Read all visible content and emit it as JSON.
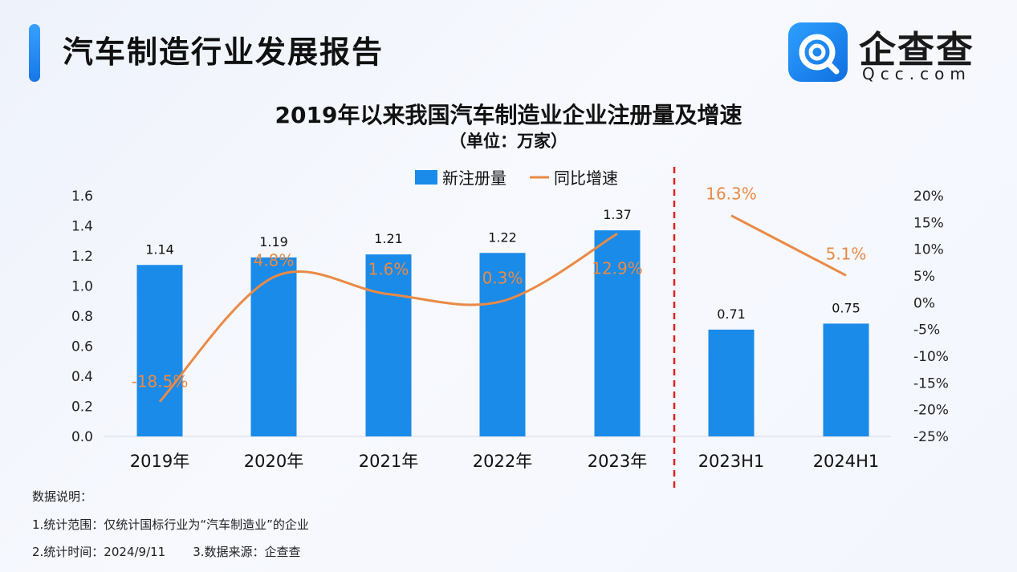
{
  "header": {
    "title": "汽车制造行业发展报告",
    "logo_name": "企查查",
    "logo_domain": "Qcc.com"
  },
  "chart_data": {
    "type": "bar",
    "title": "2019年以来我国汽车制造业企业注册量及增速",
    "subtitle": "（单位：万家）",
    "categories": [
      "2019年",
      "2020年",
      "2021年",
      "2022年",
      "2023年",
      "2023H1",
      "2024H1"
    ],
    "series": [
      {
        "name": "新注册量",
        "type": "bar",
        "axis": "left",
        "color": "#1a8be8",
        "values": [
          1.14,
          1.19,
          1.21,
          1.22,
          1.37,
          0.71,
          0.75
        ],
        "labels": [
          "1.14",
          "1.19",
          "1.21",
          "1.22",
          "1.37",
          "0.71",
          "0.75"
        ]
      },
      {
        "name": "同比增速",
        "type": "line",
        "axis": "right",
        "color": "#ea8a45",
        "values": [
          -18.5,
          4.8,
          1.6,
          0.3,
          12.9,
          16.3,
          5.1
        ],
        "labels": [
          "-18.5%",
          "4.8%",
          "1.6%",
          "0.3%",
          "12.9%",
          "16.3%",
          "5.1%"
        ]
      }
    ],
    "y_left": {
      "min": 0,
      "max": 1.6,
      "ticks": [
        "0.0",
        "0.2",
        "0.4",
        "0.6",
        "0.8",
        "1.0",
        "1.2",
        "1.4",
        "1.6"
      ]
    },
    "y_right": {
      "min": -25,
      "max": 20,
      "ticks": [
        "-25%",
        "-20%",
        "-15%",
        "-10%",
        "-5%",
        "0%",
        "5%",
        "10%",
        "15%",
        "20%"
      ]
    },
    "legend_position": "top-center",
    "grid": false,
    "divider": {
      "after_index": 4,
      "style": "dashed",
      "color": "#e02020"
    }
  },
  "notes": {
    "heading": "数据说明：",
    "scope": "1.统计范围：仅统计国标行业为“汽车制造业”的企业",
    "time": "2.统计时间：2024/9/11",
    "source": "3.数据来源：企查查"
  }
}
